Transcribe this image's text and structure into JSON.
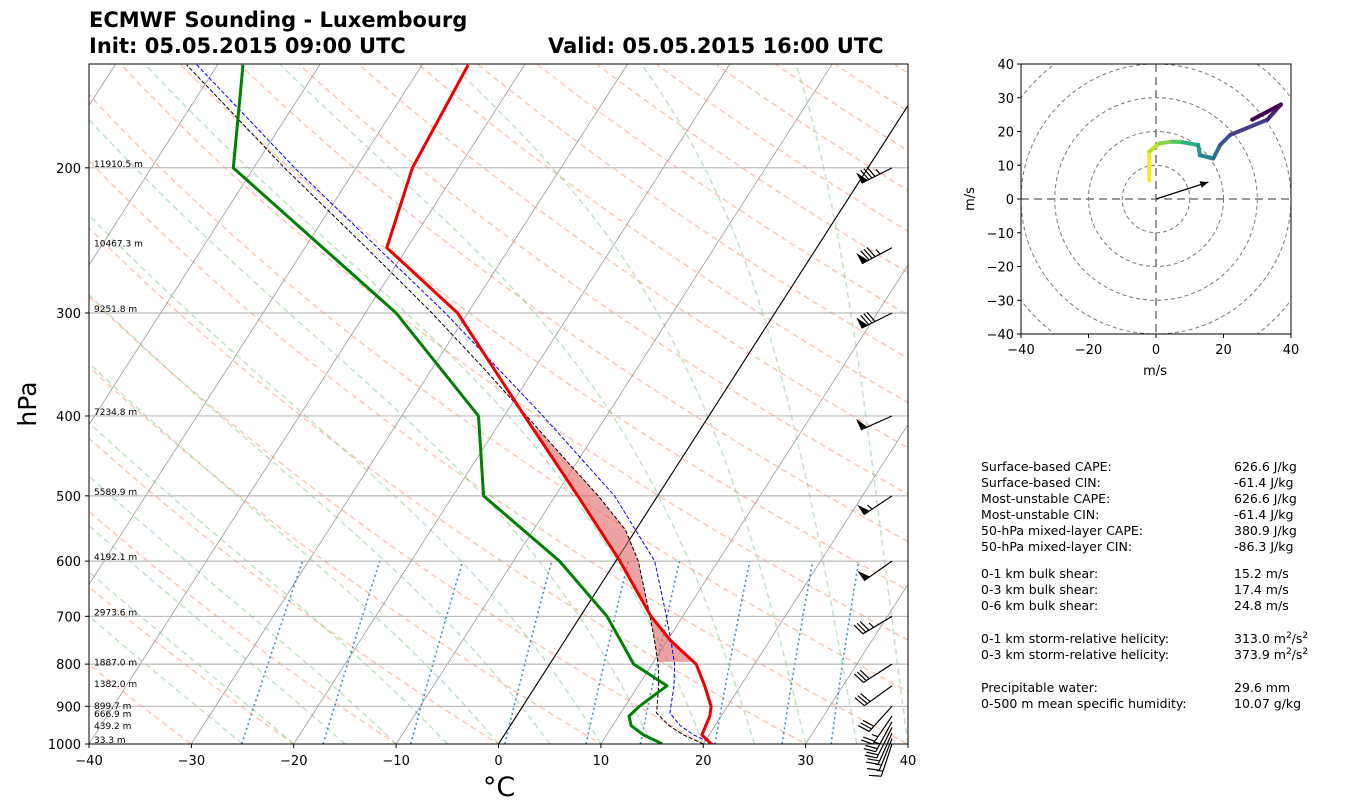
{
  "header": {
    "title_line1": "ECMWF Sounding - Luxembourg",
    "init": "Init: 05.05.2015 09:00 UTC",
    "valid": "Valid: 05.05.2015 16:00 UTC"
  },
  "chart_data": [
    {
      "type": "skew-t",
      "xlabel": "°C",
      "ylabel": "hPa",
      "xlim": [
        -40,
        40
      ],
      "ylim": [
        1000,
        150
      ],
      "x_ticks": [
        "−40",
        "−30",
        "−20",
        "−10",
        "0",
        "10",
        "20",
        "30",
        "40"
      ],
      "y_ticks": [
        {
          "p": 1000,
          "label": "1000"
        },
        {
          "p": 900,
          "label": "900"
        },
        {
          "p": 800,
          "label": "800"
        },
        {
          "p": 700,
          "label": "700"
        },
        {
          "p": 600,
          "label": "600"
        },
        {
          "p": 500,
          "label": "500"
        },
        {
          "p": 400,
          "label": "400"
        },
        {
          "p": 300,
          "label": "300"
        },
        {
          "p": 200,
          "label": "200"
        }
      ],
      "height_labels": [
        {
          "p": 1000,
          "label": "33.3 m"
        },
        {
          "p": 962,
          "label": "439.2 m"
        },
        {
          "p": 930,
          "label": "666.9 m"
        },
        {
          "p": 910,
          "label": "899.7 m"
        },
        {
          "p": 855,
          "label": "1382.0 m"
        },
        {
          "p": 805,
          "label": "1887.0 m"
        },
        {
          "p": 700,
          "label": "2973.6 m"
        },
        {
          "p": 600,
          "label": "4192.1 m"
        },
        {
          "p": 500,
          "label": "5589.9 m"
        },
        {
          "p": 400,
          "label": "7234.8 m"
        },
        {
          "p": 300,
          "label": "9251.8 m"
        },
        {
          "p": 250,
          "label": "10467.3 m"
        },
        {
          "p": 200,
          "label": "11910.5 m"
        }
      ],
      "temperature": [
        {
          "p": 1000,
          "t": 20.8
        },
        {
          "p": 975,
          "t": 19.3
        },
        {
          "p": 950,
          "t": 19.1
        },
        {
          "p": 925,
          "t": 18.9
        },
        {
          "p": 900,
          "t": 18.4
        },
        {
          "p": 850,
          "t": 16.5
        },
        {
          "p": 800,
          "t": 14.3
        },
        {
          "p": 750,
          "t": 10.4
        },
        {
          "p": 700,
          "t": 6.9
        },
        {
          "p": 600,
          "t": 0.4
        },
        {
          "p": 500,
          "t": -7.8
        },
        {
          "p": 400,
          "t": -18.0
        },
        {
          "p": 300,
          "t": -31.0
        },
        {
          "p": 250,
          "t": -42.0
        },
        {
          "p": 200,
          "t": -44.5
        },
        {
          "p": 150,
          "t": -45.5
        }
      ],
      "dewpoint": [
        {
          "p": 1000,
          "td": 16.0
        },
        {
          "p": 975,
          "td": 13.6
        },
        {
          "p": 950,
          "td": 11.8
        },
        {
          "p": 925,
          "td": 11.0
        },
        {
          "p": 900,
          "td": 11.4
        },
        {
          "p": 850,
          "td": 12.8
        },
        {
          "p": 800,
          "td": 8.2
        },
        {
          "p": 700,
          "td": 2.6
        },
        {
          "p": 600,
          "td": -5.5
        },
        {
          "p": 500,
          "td": -17.0
        },
        {
          "p": 400,
          "td": -22.5
        },
        {
          "p": 300,
          "td": -37.0
        },
        {
          "p": 200,
          "td": -62.0
        },
        {
          "p": 150,
          "td": -67.5
        }
      ],
      "parcel_path": [
        {
          "p": 1000,
          "t": 20.0
        },
        {
          "p": 975,
          "t": 17.5
        },
        {
          "p": 950,
          "t": 15.5
        },
        {
          "p": 917,
          "t": 13.5
        },
        {
          "p": 850,
          "t": 12.0
        },
        {
          "p": 800,
          "t": 10.6
        },
        {
          "p": 750,
          "t": 8.8
        },
        {
          "p": 700,
          "t": 6.8
        },
        {
          "p": 600,
          "t": 2.2
        },
        {
          "p": 550,
          "t": -1.0
        },
        {
          "p": 500,
          "t": -5.8
        },
        {
          "p": 450,
          "t": -11.5
        },
        {
          "p": 400,
          "t": -17.8
        },
        {
          "p": 350,
          "t": -25.0
        },
        {
          "p": 300,
          "t": -33.5
        },
        {
          "p": 250,
          "t": -44.0
        },
        {
          "p": 200,
          "t": -57.0
        },
        {
          "p": 150,
          "t": -73.0
        }
      ],
      "virtual_parcel": [
        {
          "p": 1000,
          "t": 21.0
        },
        {
          "p": 975,
          "t": 18.5
        },
        {
          "p": 950,
          "t": 16.6
        },
        {
          "p": 917,
          "t": 14.8
        },
        {
          "p": 850,
          "t": 13.5
        },
        {
          "p": 800,
          "t": 12.2
        },
        {
          "p": 750,
          "t": 10.4
        },
        {
          "p": 700,
          "t": 8.4
        },
        {
          "p": 600,
          "t": 3.8
        },
        {
          "p": 500,
          "t": -4.2
        },
        {
          "p": 400,
          "t": -16.2
        },
        {
          "p": 300,
          "t": -32.2
        },
        {
          "p": 250,
          "t": -42.9
        },
        {
          "p": 200,
          "t": -56.0
        },
        {
          "p": 150,
          "t": -72.0
        }
      ],
      "wind_barbs_kt": [
        {
          "p": 1000,
          "u": 4,
          "v": 12
        },
        {
          "p": 985,
          "u": 6,
          "v": 15
        },
        {
          "p": 970,
          "u": 8,
          "v": 18
        },
        {
          "p": 955,
          "u": 10,
          "v": 20
        },
        {
          "p": 940,
          "u": 12,
          "v": 22
        },
        {
          "p": 925,
          "u": 15,
          "v": 22
        },
        {
          "p": 900,
          "u": 20,
          "v": 22
        },
        {
          "p": 850,
          "u": 25,
          "v": 18
        },
        {
          "p": 800,
          "u": 25,
          "v": 16
        },
        {
          "p": 700,
          "u": 30,
          "v": 18
        },
        {
          "p": 600,
          "u": 40,
          "v": 28
        },
        {
          "p": 500,
          "u": 45,
          "v": 30
        },
        {
          "p": 400,
          "u": 45,
          "v": 20
        },
        {
          "p": 300,
          "u": 70,
          "v": 35
        },
        {
          "p": 250,
          "u": 75,
          "v": 40
        },
        {
          "p": 200,
          "u": 75,
          "v": 38
        }
      ]
    },
    {
      "type": "hodograph",
      "xlabel": "m/s",
      "ylabel": "m/s",
      "xlim": [
        -40,
        40
      ],
      "ylim": [
        -40,
        40
      ],
      "x_ticks": [
        "−40",
        "−20",
        "0",
        "20",
        "40"
      ],
      "y_ticks": [
        "40",
        "30",
        "20",
        "10",
        "0",
        "−10",
        "−20",
        "−30",
        "−40"
      ],
      "rings": [
        10,
        20,
        30,
        40,
        50
      ],
      "hodo_points": [
        {
          "u": -2,
          "v": 5.5
        },
        {
          "u": -2,
          "v": 14
        },
        {
          "u": 1,
          "v": 16.5
        },
        {
          "u": 5,
          "v": 17
        },
        {
          "u": 8,
          "v": 16.8
        },
        {
          "u": 12.5,
          "v": 16
        },
        {
          "u": 13,
          "v": 13
        },
        {
          "u": 17,
          "v": 12
        },
        {
          "u": 19,
          "v": 16
        },
        {
          "u": 22,
          "v": 19
        },
        {
          "u": 33,
          "v": 23.5
        },
        {
          "u": 37,
          "v": 28
        },
        {
          "u": 28.5,
          "v": 23.5
        }
      ],
      "storm_motion": {
        "u": 15.5,
        "v": 5
      }
    }
  ],
  "params": [
    {
      "label": "Surface-based CAPE:",
      "value": "626.6 J/kg"
    },
    {
      "label": "Surface-based CIN:",
      "value": "-61.4 J/kg"
    },
    {
      "label": "Most-unstable CAPE:",
      "value": "626.6 J/kg"
    },
    {
      "label": "Most-unstable CIN:",
      "value": "-61.4 J/kg"
    },
    {
      "label": "50-hPa mixed-layer CAPE:",
      "value": "380.9 J/kg"
    },
    {
      "label": "50-hPa mixed-layer CIN:",
      "value": "-86.3 J/kg"
    },
    {
      "label": "0-1 km bulk shear:",
      "value": "15.2 m/s"
    },
    {
      "label": "0-3 km bulk shear:",
      "value": "17.4 m/s"
    },
    {
      "label": "0-6 km bulk shear:",
      "value": "24.8 m/s"
    },
    {
      "label": "0-1 km storm-relative helicity:",
      "value": "313.0 m",
      "unit_sup1": "2",
      "unit_mid": "/s",
      "unit_sup2": "2"
    },
    {
      "label": "0-3 km storm-relative helicity:",
      "value": "373.9 m",
      "unit_sup1": "2",
      "unit_mid": "/s",
      "unit_sup2": "2"
    },
    {
      "label": "Precipitable water:",
      "value": "29.6 mm"
    },
    {
      "label": "0-500 m mean specific humidity:",
      "value": "10.07 g/kg"
    }
  ]
}
